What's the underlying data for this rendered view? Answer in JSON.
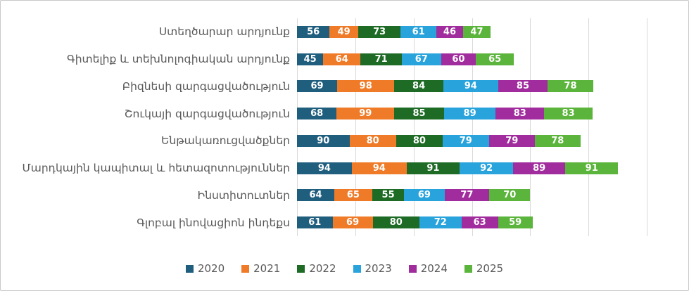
{
  "chart_data": {
    "type": "bar",
    "orientation": "horizontal",
    "stacked": true,
    "title": "",
    "xlabel": "",
    "ylabel": "",
    "xlim": [
      0,
      600
    ],
    "gridline_step": 100,
    "grid_on": true,
    "grid_color": "#d9d9d9",
    "legend_position": "bottom",
    "value_labels": "inside-white-bold",
    "categories": [
      "Ստեղծարար արդյունք",
      "Գիտելիք և տեխնոլոգիական արդյունք",
      "Բիզնեսի զարգացվածություն",
      "Շուկայի զարգացվածություն",
      "Ենթակառուցվածքներ",
      "Մարդկային կապիտալ և հետազոտություններ",
      "Ինստիտուտներ",
      "Գլոբալ ինովացիոն ինդեքս"
    ],
    "series": [
      {
        "name": "2020",
        "color": "#205e7e",
        "values": [
          56,
          45,
          69,
          68,
          90,
          94,
          64,
          61
        ]
      },
      {
        "name": "2021",
        "color": "#ef7b28",
        "values": [
          49,
          64,
          98,
          99,
          80,
          94,
          65,
          69
        ]
      },
      {
        "name": "2022",
        "color": "#1e6b26",
        "values": [
          73,
          71,
          84,
          85,
          80,
          91,
          55,
          80
        ]
      },
      {
        "name": "2023",
        "color": "#29a3dc",
        "values": [
          61,
          67,
          94,
          89,
          79,
          92,
          69,
          72
        ]
      },
      {
        "name": "2024",
        "color": "#a12c9e",
        "values": [
          46,
          60,
          85,
          83,
          79,
          89,
          77,
          63
        ]
      },
      {
        "name": "2025",
        "color": "#5bb43b",
        "values": [
          47,
          65,
          78,
          83,
          78,
          91,
          70,
          59
        ]
      }
    ]
  }
}
